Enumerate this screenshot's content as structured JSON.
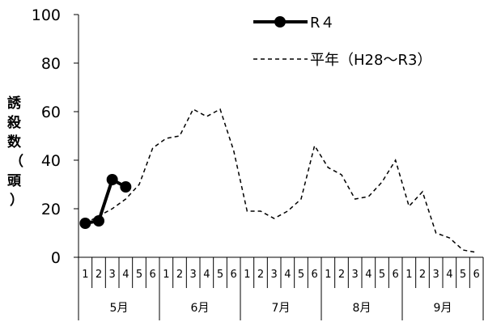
{
  "chart_data": {
    "type": "line",
    "ylabel": "誘殺数（頭）",
    "ylim": [
      0,
      100
    ],
    "yticks": [
      "0",
      "20",
      "40",
      "60",
      "80",
      "100"
    ],
    "x_sub_labels": [
      "1",
      "2",
      "3",
      "4",
      "5",
      "6",
      "1",
      "2",
      "3",
      "4",
      "5",
      "6",
      "1",
      "2",
      "3",
      "4",
      "5",
      "6",
      "1",
      "2",
      "3",
      "4",
      "5",
      "6",
      "1",
      "2",
      "3",
      "4",
      "5",
      "6"
    ],
    "months": [
      "5月",
      "6月",
      "7月",
      "8月",
      "9月"
    ],
    "legend_position": "top-right",
    "grid": false,
    "series": [
      {
        "name": "R４",
        "style": "solid-with-markers",
        "color": "#000000",
        "values": [
          14,
          15,
          32,
          29
        ]
      },
      {
        "name": "平年（H28～R3）",
        "style": "dashed",
        "color": "#000000",
        "values": [
          14,
          17,
          20,
          24,
          30,
          45,
          49,
          50,
          61,
          58,
          61,
          44,
          19,
          19,
          16,
          19,
          24,
          46,
          37,
          34,
          24,
          25,
          31,
          40,
          21,
          27,
          10,
          8,
          3,
          2
        ]
      }
    ]
  }
}
